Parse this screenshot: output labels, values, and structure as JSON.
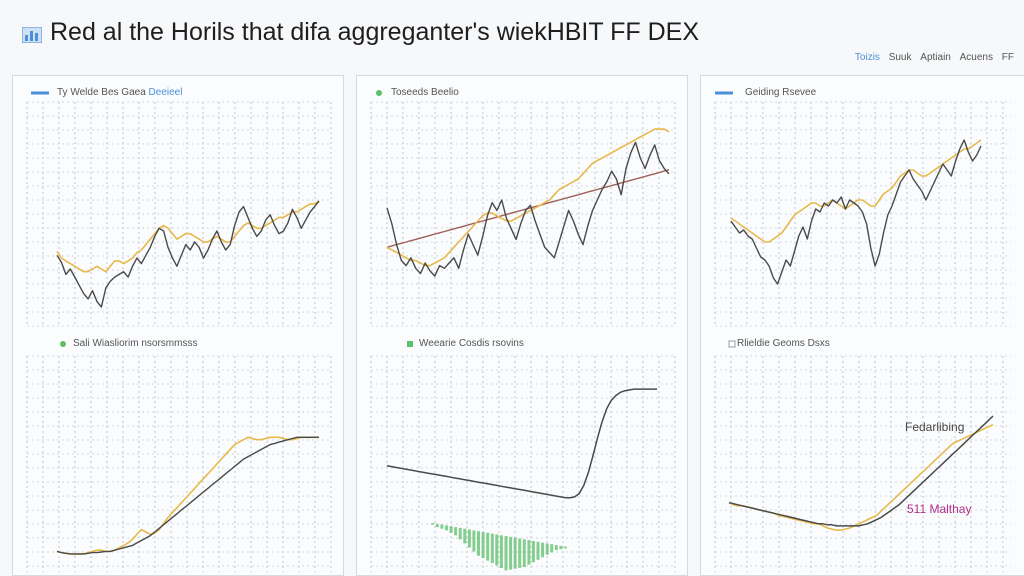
{
  "header": {
    "title": "Red al the Horils that difa aggreganter's wiekHBIT FF DEX",
    "legend_items": [
      "Toizis",
      "Suuk",
      "Aptiain",
      "Acuens",
      "FF"
    ]
  },
  "colors": {
    "primary_line": "#4a4a4a",
    "secondary_line": "#e8b84a",
    "trend_line": "#a0605a",
    "area_fill": "#5cbf6a",
    "accent_blue": "#4a90d9",
    "annotation_pink": "#b0308c"
  },
  "panels": [
    {
      "top_label": "Ty Welde Bes Gaea",
      "top_label_extra": "Deeieel",
      "bottom_label": "Sali Wiasliorim nsorsmmsss"
    },
    {
      "top_label": "Toseeds Beelio",
      "bottom_label": "Weearie Cosdis rsovins"
    },
    {
      "top_label": "Geiding Rsevee",
      "bottom_label": "Rlieldie Geoms Dsxs",
      "annotation_top": "Fedarlibing",
      "annotation_bottom": "511 Malthay"
    }
  ],
  "chart_data": [
    {
      "type": "line",
      "title": "Ty Welde Bes Gaea",
      "x": [
        0,
        1,
        2,
        3,
        4,
        5,
        6,
        7,
        8,
        9,
        10,
        11,
        12,
        13,
        14,
        15,
        16,
        17,
        18,
        19,
        20,
        21,
        22,
        23,
        24,
        25,
        26,
        27,
        28,
        29,
        30,
        31,
        32,
        33,
        34,
        35,
        36,
        37,
        38,
        39,
        40,
        41,
        42,
        43,
        44,
        45,
        46,
        47,
        48,
        49,
        50,
        51,
        52,
        53,
        54,
        55,
        56,
        57,
        58,
        59
      ],
      "series": [
        {
          "values": [
            52,
            47,
            38,
            42,
            36,
            30,
            24,
            20,
            26,
            18,
            14,
            28,
            33,
            36,
            38,
            40,
            36,
            44,
            50,
            46,
            52,
            58,
            66,
            72,
            70,
            58,
            50,
            44,
            52,
            60,
            56,
            62,
            58,
            50,
            56,
            64,
            70,
            62,
            56,
            60,
            74,
            84,
            88,
            80,
            72,
            66,
            70,
            78,
            82,
            74,
            68,
            70,
            76,
            86,
            80,
            72,
            78,
            84,
            88,
            92
          ]
        },
        {
          "values": [
            55,
            50,
            48,
            46,
            44,
            42,
            40,
            40,
            42,
            44,
            42,
            40,
            44,
            48,
            48,
            46,
            48,
            50,
            54,
            56,
            60,
            64,
            68,
            72,
            74,
            72,
            68,
            64,
            66,
            68,
            68,
            66,
            64,
            62,
            62,
            64,
            66,
            64,
            62,
            62,
            66,
            70,
            74,
            76,
            74,
            72,
            72,
            74,
            76,
            78,
            80,
            80,
            82,
            84,
            84,
            86,
            88,
            90,
            90,
            92
          ]
        }
      ],
      "ylim": [
        0,
        140
      ]
    },
    {
      "type": "line",
      "title": "Toseeds Beelio",
      "x": [
        0,
        1,
        2,
        3,
        4,
        5,
        6,
        7,
        8,
        9,
        10,
        11,
        12,
        13,
        14,
        15,
        16,
        17,
        18,
        19,
        20,
        21,
        22,
        23,
        24,
        25,
        26,
        27,
        28,
        29,
        30,
        31,
        32,
        33,
        34,
        35,
        36,
        37,
        38,
        39,
        40,
        41,
        42,
        43,
        44,
        45,
        46,
        47,
        48,
        49,
        50,
        51,
        52,
        53,
        54,
        55,
        56,
        57,
        58,
        59
      ],
      "series": [
        {
          "values": [
            90,
            78,
            62,
            50,
            46,
            52,
            44,
            40,
            48,
            42,
            38,
            46,
            44,
            48,
            52,
            44,
            58,
            70,
            62,
            54,
            68,
            84,
            94,
            88,
            96,
            82,
            74,
            66,
            78,
            88,
            92,
            80,
            70,
            60,
            56,
            52,
            64,
            76,
            88,
            80,
            70,
            62,
            76,
            88,
            96,
            104,
            110,
            118,
            112,
            100,
            120,
            132,
            140,
            128,
            120,
            130,
            138,
            126,
            120,
            116
          ]
        },
        {
          "values": [
            60,
            58,
            56,
            54,
            52,
            50,
            50,
            48,
            46,
            46,
            48,
            50,
            52,
            56,
            60,
            64,
            68,
            72,
            76,
            80,
            84,
            86,
            86,
            84,
            82,
            80,
            80,
            82,
            84,
            86,
            88,
            90,
            92,
            94,
            96,
            100,
            104,
            106,
            108,
            110,
            112,
            116,
            120,
            124,
            126,
            128,
            130,
            132,
            134,
            136,
            138,
            140,
            142,
            144,
            146,
            148,
            150,
            150,
            150,
            148
          ]
        },
        {
          "values": [
            60,
            61,
            62,
            63,
            64,
            65,
            66,
            67,
            68,
            69,
            70,
            71,
            72,
            73,
            74,
            75,
            76,
            77,
            78,
            79,
            80,
            81,
            82,
            83,
            84,
            85,
            86,
            87,
            88,
            89,
            90,
            91,
            92,
            93,
            94,
            95,
            96,
            97,
            98,
            99,
            100,
            101,
            102,
            103,
            104,
            105,
            106,
            107,
            108,
            109,
            110,
            111,
            112,
            113,
            114,
            115,
            116,
            117,
            118,
            119
          ]
        }
      ],
      "ylim": [
        0,
        160
      ]
    },
    {
      "type": "line",
      "title": "Geiding Rsevee",
      "x": [
        0,
        1,
        2,
        3,
        4,
        5,
        6,
        7,
        8,
        9,
        10,
        11,
        12,
        13,
        14,
        15,
        16,
        17,
        18,
        19,
        20,
        21,
        22,
        23,
        24,
        25,
        26,
        27,
        28,
        29,
        30,
        31,
        32,
        33,
        34,
        35,
        36,
        37,
        38,
        39,
        40,
        41,
        42,
        43,
        44,
        45,
        46,
        47,
        48,
        49,
        50,
        51,
        52,
        53,
        54,
        55,
        56,
        57,
        58,
        59
      ],
      "series": [
        {
          "values": [
            70,
            66,
            62,
            64,
            60,
            58,
            52,
            46,
            44,
            40,
            32,
            28,
            36,
            44,
            40,
            50,
            60,
            66,
            58,
            70,
            78,
            76,
            82,
            80,
            84,
            82,
            86,
            78,
            84,
            82,
            80,
            76,
            68,
            52,
            40,
            48,
            62,
            74,
            80,
            88,
            96,
            100,
            104,
            98,
            94,
            90,
            84,
            90,
            96,
            102,
            108,
            104,
            100,
            110,
            118,
            124,
            116,
            110,
            114,
            120
          ]
        },
        {
          "values": [
            72,
            70,
            68,
            66,
            64,
            62,
            60,
            58,
            56,
            56,
            58,
            60,
            62,
            66,
            70,
            74,
            76,
            78,
            80,
            82,
            82,
            80,
            80,
            82,
            84,
            82,
            80,
            78,
            80,
            82,
            84,
            84,
            82,
            80,
            80,
            84,
            88,
            90,
            92,
            96,
            100,
            102,
            104,
            104,
            102,
            100,
            100,
            102,
            104,
            106,
            108,
            110,
            112,
            114,
            116,
            118,
            118,
            120,
            122,
            124
          ]
        }
      ],
      "ylim": [
        0,
        140
      ]
    },
    {
      "type": "line",
      "title": "Sali Wiasliorim nsorsmmsss",
      "x": [
        0,
        1,
        2,
        3,
        4,
        5,
        6,
        7,
        8,
        9,
        10,
        11,
        12,
        13,
        14,
        15,
        16,
        17,
        18,
        19,
        20,
        21,
        22,
        23,
        24,
        25,
        26,
        27,
        28,
        29,
        30,
        31,
        32,
        33,
        34,
        35,
        36,
        37,
        38,
        39,
        40,
        41,
        42,
        43,
        44,
        45,
        46,
        47,
        48,
        49,
        50,
        51,
        52,
        53,
        54,
        55,
        56,
        57,
        58,
        59
      ],
      "series": [
        {
          "values": [
            2,
            1,
            0.5,
            0,
            0,
            0,
            0,
            0.5,
            1,
            1,
            1.5,
            2,
            2,
            3,
            4,
            5,
            6,
            7,
            9,
            11,
            13,
            15,
            18,
            21,
            24,
            27,
            30,
            33,
            36,
            39,
            42,
            45,
            48,
            51,
            54,
            57,
            60,
            63,
            66,
            69,
            72,
            75,
            78,
            80,
            82,
            84,
            86,
            88,
            90,
            91,
            92,
            93,
            94,
            95,
            96,
            96,
            96,
            96,
            96,
            96
          ]
        },
        {
          "values": [
            2,
            1,
            0.5,
            0,
            -0.5,
            0,
            0,
            1,
            2,
            3,
            3,
            2,
            2,
            3,
            5,
            7,
            9,
            12,
            16,
            20,
            18,
            16,
            17,
            20,
            25,
            30,
            34,
            38,
            42,
            46,
            50,
            54,
            58,
            62,
            66,
            70,
            74,
            78,
            82,
            86,
            90,
            92,
            94,
            96,
            95,
            94,
            94,
            95,
            96,
            96,
            96,
            95,
            94,
            94,
            95,
            96,
            96,
            96,
            96,
            96
          ]
        }
      ],
      "ylim": [
        -10,
        130
      ]
    },
    {
      "type": "area",
      "title": "Weearie Cosdis rsovins",
      "x": [
        0,
        1,
        2,
        3,
        4,
        5,
        6,
        7,
        8,
        9,
        10,
        11,
        12,
        13,
        14,
        15,
        16,
        17,
        18,
        19,
        20,
        21,
        22,
        23,
        24,
        25,
        26,
        27,
        28,
        29,
        30,
        31,
        32,
        33,
        34,
        35,
        36,
        37,
        38,
        39,
        40,
        41,
        42,
        43,
        44,
        45,
        46,
        47,
        48,
        49,
        50,
        51,
        52,
        53,
        54,
        55,
        56,
        57,
        58,
        59
      ],
      "series": [
        {
          "values": [
            70,
            69,
            68,
            67,
            66,
            65,
            64,
            63,
            62,
            61,
            60,
            59,
            58,
            57,
            56,
            55,
            54,
            53,
            52,
            51,
            50,
            49,
            48,
            47,
            46,
            45,
            44,
            43,
            42,
            41,
            40,
            39,
            38,
            37,
            36,
            35,
            34,
            33,
            32,
            31,
            31,
            32,
            36,
            46,
            62,
            82,
            104,
            124,
            140,
            150,
            156,
            160,
            162,
            163,
            164,
            164,
            164,
            164,
            164,
            164
          ]
        },
        {
          "values": [
            0,
            0,
            0,
            0,
            0,
            0,
            0,
            0,
            0,
            0,
            -2,
            -4,
            -5,
            -6,
            -8,
            -10,
            -14,
            -18,
            -22,
            -26,
            -30,
            -32,
            -34,
            -36,
            -38,
            -40,
            -42,
            -40,
            -38,
            -36,
            -34,
            -30,
            -26,
            -22,
            -18,
            -14,
            -10,
            -6,
            -4,
            -2,
            0,
            0,
            0,
            0,
            0,
            0,
            0,
            0,
            0,
            0,
            0,
            0,
            0,
            0,
            0,
            0,
            0,
            0,
            0,
            0
          ]
        }
      ],
      "ylim": [
        -60,
        180
      ]
    },
    {
      "type": "line",
      "title": "Rlieldie Geoms Dsxs",
      "x": [
        0,
        1,
        2,
        3,
        4,
        5,
        6,
        7,
        8,
        9,
        10,
        11,
        12,
        13,
        14,
        15,
        16,
        17,
        18,
        19,
        20,
        21,
        22,
        23,
        24,
        25,
        26,
        27,
        28,
        29,
        30,
        31,
        32,
        33,
        34,
        35,
        36,
        37,
        38,
        39,
        40,
        41,
        42,
        43,
        44,
        45,
        46,
        47,
        48,
        49,
        50,
        51,
        52,
        53,
        54,
        55,
        56,
        57,
        58,
        59
      ],
      "series": [
        {
          "values": [
            60,
            59,
            58,
            57,
            56,
            55,
            54,
            53,
            52,
            51,
            50,
            49,
            48,
            47,
            46,
            45,
            44,
            43,
            42,
            41,
            40,
            40,
            39,
            39,
            38,
            38,
            38,
            38,
            38,
            38,
            39,
            40,
            42,
            44,
            46,
            49,
            52,
            55,
            58,
            62,
            66,
            70,
            74,
            78,
            82,
            86,
            90,
            94,
            98,
            102,
            106,
            110,
            114,
            118,
            122,
            126,
            130,
            134,
            138,
            142
          ]
        },
        {
          "values": [
            60,
            58,
            57,
            57,
            56,
            55,
            54,
            53,
            52,
            51,
            50,
            48,
            47,
            46,
            45,
            44,
            43,
            42,
            41,
            40,
            40,
            38,
            36,
            35,
            34,
            34,
            35,
            36,
            38,
            40,
            42,
            44,
            46,
            48,
            52,
            56,
            60,
            64,
            68,
            72,
            76,
            80,
            84,
            88,
            92,
            96,
            100,
            104,
            108,
            112,
            116,
            118,
            120,
            122,
            124,
            126,
            128,
            130,
            132,
            134
          ]
        }
      ],
      "ylim": [
        0,
        180
      ]
    }
  ]
}
